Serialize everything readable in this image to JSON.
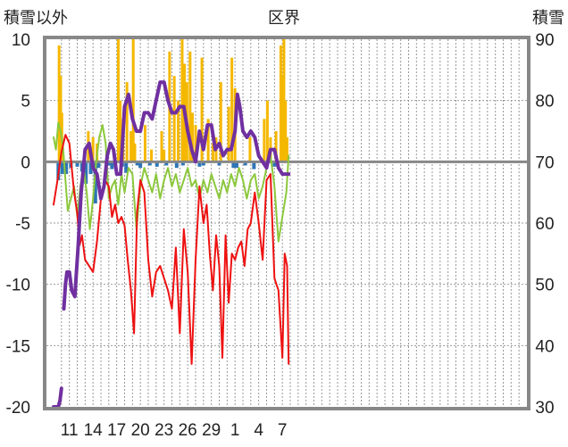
{
  "chart_data": {
    "type": "line",
    "title": "区界",
    "left_axis_label": "積雪以外",
    "right_axis_label": "積雪",
    "left_ylim": [
      -20,
      10
    ],
    "right_ylim": [
      30,
      90
    ],
    "left_ticks": [
      "10",
      "5",
      "0",
      "-5",
      "-10",
      "-15",
      "-20"
    ],
    "right_ticks": [
      "90",
      "80",
      "70",
      "60",
      "50",
      "40",
      "30"
    ],
    "x_tick_labels": [
      "11",
      "14",
      "17",
      "20",
      "23",
      "26",
      "29",
      "1",
      "4",
      "7"
    ],
    "x_range": [
      0,
      60
    ],
    "x_tick_positions": [
      2,
      5,
      8,
      11,
      14,
      17,
      20,
      23,
      26,
      29
    ],
    "grid": true,
    "colors": {
      "temperature": "#ee1111",
      "secondary": "#8cc83c",
      "snow_depth": "#7030a0",
      "precip_positive": "#f5b800",
      "precip_negative": "#2e75b6",
      "frame": "#888888",
      "grid": "#999999"
    },
    "series": [
      {
        "key": "temperature",
        "axis": "left",
        "x": [
          0,
          0.5,
          1,
          1.5,
          2,
          2.3,
          2.6,
          3,
          3.3,
          3.6,
          4,
          4.5,
          5,
          5.5,
          6,
          6.5,
          7,
          7.4,
          7.8,
          8.2,
          8.6,
          9,
          9.4,
          9.8,
          10.2,
          10.6,
          11,
          11.5,
          12,
          12.5,
          13,
          13.5,
          14,
          14.5,
          15,
          15.5,
          16,
          16.5,
          17,
          17.5,
          18,
          18.5,
          19,
          19.4,
          19.8,
          20.2,
          20.6,
          21,
          21.4,
          21.8,
          22.2,
          22.6,
          23,
          23.4,
          23.8,
          24.2,
          24.6,
          25,
          25.5,
          26,
          26.5,
          27,
          27.5,
          28,
          28.5,
          29,
          29.3,
          29.6,
          29.8
        ],
        "values": [
          -3.5,
          -1.5,
          0.8,
          2.2,
          1.5,
          -0.5,
          -2.5,
          -4.2,
          -6.8,
          -6.0,
          -8.0,
          -8.5,
          -9.0,
          -6.5,
          -3.0,
          -1.5,
          -2.0,
          -4.5,
          -3.5,
          -5.0,
          -4.5,
          -5.2,
          -8.0,
          -10.5,
          -14.0,
          -4.0,
          -1.5,
          -2.5,
          -8.0,
          -11.0,
          -9.0,
          -8.5,
          -9.5,
          -10.5,
          -12.0,
          -7.0,
          -14.0,
          -5.5,
          -9.0,
          -16.5,
          -8.0,
          -2.0,
          -5.0,
          -3.5,
          -7.5,
          -10.5,
          -6.0,
          -8.5,
          -16.0,
          -6.0,
          -11.5,
          -7.5,
          -8.0,
          -7.0,
          -6.5,
          -8.5,
          -5.5,
          -5.0,
          -2.5,
          -5.0,
          -8.0,
          -1.5,
          -1.0,
          -9.5,
          -10.5,
          -16.0,
          -7.5,
          -8.5,
          -16.5
        ]
      },
      {
        "key": "secondary",
        "axis": "left",
        "x": [
          0,
          0.3,
          0.6,
          0.9,
          1.2,
          1.5,
          1.8,
          2.2,
          2.6,
          3,
          3.4,
          3.8,
          4.2,
          4.6,
          5,
          5.4,
          5.8,
          6.2,
          6.6,
          7,
          7.4,
          7.8,
          8.2,
          8.6,
          9,
          9.5,
          10,
          10.5,
          11,
          11.5,
          12,
          12.5,
          13,
          13.5,
          14,
          14.5,
          15,
          15.5,
          16,
          16.5,
          17,
          17.5,
          18,
          18.5,
          19,
          19.5,
          20,
          20.5,
          21,
          21.5,
          22,
          22.5,
          23,
          23.5,
          24,
          24.5,
          25,
          25.5,
          26,
          26.5,
          27,
          27.5,
          28,
          28.5,
          29,
          29.5,
          29.8
        ],
        "values": [
          2.0,
          1.0,
          3.2,
          2.5,
          1.2,
          -1.5,
          -4.0,
          -3.0,
          -2.0,
          -4.5,
          -2.0,
          -0.5,
          -2.5,
          -5.5,
          -3.0,
          0.0,
          2.0,
          3.0,
          1.5,
          -3.0,
          -2.0,
          -1.5,
          -3.5,
          -1.0,
          -2.5,
          -0.5,
          -1.0,
          -5.5,
          -2.0,
          -0.5,
          -1.5,
          -2.5,
          -1.0,
          -3.0,
          -1.5,
          -0.5,
          -2.0,
          -1.0,
          -2.5,
          -1.5,
          -0.5,
          -2.0,
          -1.5,
          -3.0,
          -1.5,
          -2.5,
          -1.0,
          -2.0,
          -3.0,
          -1.5,
          -2.5,
          -1.0,
          -2.0,
          -0.5,
          -1.5,
          -3.0,
          -1.5,
          -1.0,
          -3.0,
          -2.0,
          -0.5,
          0.5,
          -2.0,
          -6.5,
          -4.5,
          -2.5,
          0.5
        ]
      },
      {
        "key": "snow_depth",
        "axis": "right",
        "x": [
          0,
          0.6,
          0.8,
          0.9,
          1.0,
          1.1,
          1.3,
          1.5,
          1.7,
          2.0,
          2.3,
          2.7,
          3.1,
          3.5,
          4.0,
          4.5,
          5.0,
          5.5,
          6.0,
          6.4,
          6.8,
          7.2,
          7.6,
          8.0,
          8.5,
          9.0,
          9.5,
          10.0,
          10.5,
          11.0,
          11.5,
          12.0,
          12.5,
          13.0,
          13.5,
          14.0,
          14.5,
          15.0,
          15.5,
          16.0,
          16.5,
          17.0,
          17.5,
          18.0,
          18.5,
          19.0,
          19.5,
          20.0,
          20.5,
          21.0,
          21.5,
          22.0,
          22.5,
          23.0,
          23.3,
          23.6,
          24.0,
          24.5,
          25.0,
          25.5,
          26.0,
          26.5,
          27.0,
          27.5,
          28.0,
          28.5,
          29.0,
          29.5,
          29.8
        ],
        "values": [
          30,
          30,
          31,
          32,
          33,
          null,
          46,
          50,
          52,
          52,
          49,
          48,
          56,
          65,
          72,
          73,
          69,
          68,
          64,
          66,
          71,
          73,
          72,
          68,
          68,
          79,
          81,
          77,
          75,
          75,
          78,
          78,
          77,
          80,
          83,
          83,
          80,
          78,
          78,
          79,
          79,
          75,
          72,
          70,
          75,
          72,
          76,
          76,
          72,
          73,
          71,
          72,
          72,
          75,
          81,
          79,
          75,
          74,
          75,
          74,
          71,
          70,
          69,
          72,
          72,
          69,
          68,
          68,
          68
        ],
        "segment_breaks_after_index": [
          4
        ]
      }
    ],
    "precip_bars": {
      "axis": "left",
      "x": [
        0.7,
        0.9,
        1.05,
        4.4,
        5.0,
        5.5,
        8.2,
        8.45,
        8.8,
        9.3,
        9.8,
        10.1,
        10.3,
        11.6,
        12.4,
        13.7,
        14.0,
        14.7,
        15.3,
        15.8,
        16.3,
        16.6,
        16.9,
        17.3,
        17.6,
        18.0,
        18.8,
        19.6,
        20.2,
        20.6,
        21.2,
        22.2,
        22.6,
        23.0,
        24.9,
        26.7,
        27.1,
        27.5,
        28.2,
        28.8,
        28.95,
        29.2,
        29.4,
        29.6
      ],
      "values": [
        9.5,
        7.0,
        4.0,
        2.5,
        2.0,
        1.5,
        10.0,
        5.0,
        3.5,
        6.5,
        2.5,
        10.0,
        1.5,
        3.0,
        1.0,
        2.5,
        1.0,
        9.0,
        7.0,
        5.0,
        10.0,
        8.0,
        6.5,
        9.0,
        4.0,
        3.0,
        8.5,
        3.5,
        1.5,
        2.0,
        6.5,
        4.5,
        8.5,
        6.0,
        2.0,
        3.5,
        5.0,
        2.0,
        2.5,
        9.5,
        7.0,
        10.0,
        5.0,
        2.0
      ]
    },
    "negative_bars": {
      "axis": "left",
      "x": [
        0.6,
        1.1,
        1.3,
        1.6,
        2.2,
        3.0,
        3.6,
        4.1,
        4.7,
        5.3,
        5.7,
        7.0,
        7.4,
        8.7,
        9.2,
        10.6,
        11.0,
        12.2,
        13.1,
        14.3,
        15.6,
        16.4,
        18.5,
        19.0,
        21.0,
        22.8,
        23.2,
        24.3,
        25.4,
        26.8,
        28.0
      ],
      "values": [
        -1.5,
        -1.0,
        -0.6,
        -1.0,
        -0.5,
        -0.4,
        -0.8,
        -1.8,
        -1.0,
        -3.4,
        -0.5,
        -0.3,
        -0.6,
        -0.4,
        -0.9,
        -0.3,
        -0.5,
        -0.3,
        -0.4,
        -0.3,
        -0.5,
        -0.3,
        -0.4,
        -0.3,
        -0.3,
        -0.5,
        -0.5,
        -0.3,
        -0.6,
        -0.3,
        -0.4
      ]
    }
  }
}
